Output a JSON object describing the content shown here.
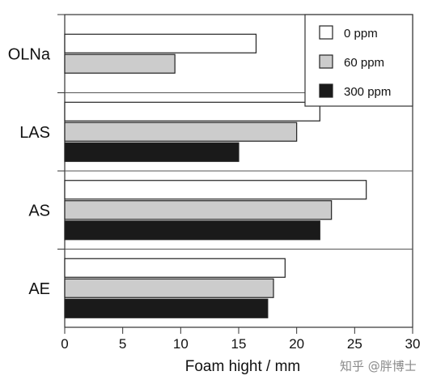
{
  "chart_data": {
    "type": "bar",
    "orientation": "horizontal",
    "categories": [
      "OLNa",
      "LAS",
      "AS",
      "AE"
    ],
    "series": [
      {
        "name": "0 ppm",
        "values": [
          16.5,
          22,
          26,
          19
        ],
        "color": "#ffffff"
      },
      {
        "name": "60 ppm",
        "values": [
          9.5,
          20,
          23,
          18
        ],
        "color": "#cccccc"
      },
      {
        "name": "300 ppm",
        "values": [
          null,
          15,
          22,
          17.5
        ],
        "color": "#1a1a1a"
      }
    ],
    "xlabel": "Foam hight / mm",
    "ylabel": "",
    "xlim": [
      0,
      30
    ],
    "xticks": [
      0,
      5,
      10,
      15,
      20,
      25,
      30
    ],
    "grid": false,
    "legend_position": "top-right"
  },
  "watermark": "知乎 @胖博士"
}
